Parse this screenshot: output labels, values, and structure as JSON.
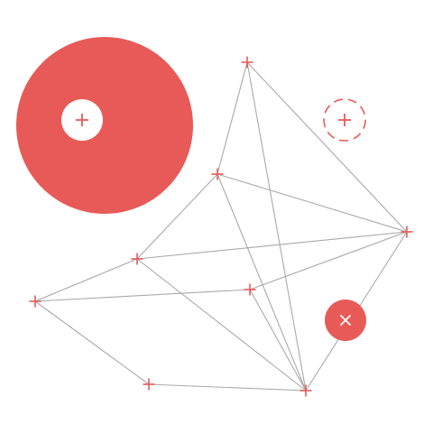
{
  "colors": {
    "accent": "#e85a57",
    "edge": "#a9a9a9",
    "background": "#ffffff",
    "on_accent": "#ffffff"
  },
  "icons": {
    "node": "plus-icon",
    "big_disc_center": "plus-icon",
    "target": "dashed-circle-plus-icon",
    "delete": "close-icon"
  },
  "graph": {
    "nodes": [
      {
        "id": "n1"
      },
      {
        "id": "n2"
      },
      {
        "id": "n3"
      },
      {
        "id": "n4"
      },
      {
        "id": "n5"
      },
      {
        "id": "n6"
      },
      {
        "id": "n7"
      },
      {
        "id": "n8"
      }
    ],
    "edges": [
      [
        "n1",
        "n2"
      ],
      [
        "n1",
        "n3"
      ],
      [
        "n1",
        "n8"
      ],
      [
        "n2",
        "n3"
      ],
      [
        "n2",
        "n4"
      ],
      [
        "n2",
        "n8"
      ],
      [
        "n3",
        "n4"
      ],
      [
        "n3",
        "n5"
      ],
      [
        "n3",
        "n8"
      ],
      [
        "n4",
        "n6"
      ],
      [
        "n4",
        "n8"
      ],
      [
        "n5",
        "n6"
      ],
      [
        "n5",
        "n8"
      ],
      [
        "n6",
        "n7"
      ],
      [
        "n7",
        "n8"
      ]
    ]
  }
}
